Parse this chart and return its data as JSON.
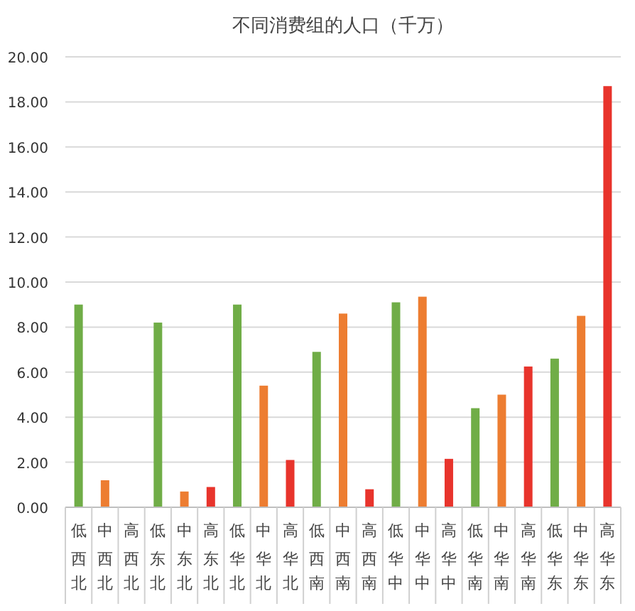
{
  "chart_data": {
    "type": "bar",
    "title": "不同消费组的人口（千万）",
    "categories": [
      "低西北",
      "中西北",
      "高西北",
      "低东北",
      "中东北",
      "高东北",
      "低华北",
      "中华北",
      "高华北",
      "低西南",
      "中西南",
      "高西南",
      "低华中",
      "中华中",
      "高华中",
      "低华南",
      "中华南",
      "高华南",
      "低华东",
      "中华东",
      "高华东"
    ],
    "values": [
      9.0,
      1.2,
      0,
      8.2,
      0.7,
      0.9,
      9.0,
      5.4,
      2.1,
      6.9,
      8.6,
      0.8,
      9.1,
      9.35,
      2.15,
      4.4,
      5.0,
      6.25,
      6.6,
      8.5,
      18.7
    ],
    "colors": [
      "#70ad47",
      "#ed7d31",
      "#e8342c",
      "#70ad47",
      "#ed7d31",
      "#e8342c",
      "#70ad47",
      "#ed7d31",
      "#e8342c",
      "#70ad47",
      "#ed7d31",
      "#e8342c",
      "#70ad47",
      "#ed7d31",
      "#e8342c",
      "#70ad47",
      "#ed7d31",
      "#e8342c",
      "#70ad47",
      "#ed7d31",
      "#e8342c"
    ],
    "ylim": [
      0,
      20
    ],
    "yticks": [
      {
        "value": 0,
        "label": "0.00"
      },
      {
        "value": 2,
        "label": "2.00"
      },
      {
        "value": 4,
        "label": "4.00"
      },
      {
        "value": 6,
        "label": "6.00"
      },
      {
        "value": 8,
        "label": "8.00"
      },
      {
        "value": 10,
        "label": "10.00"
      },
      {
        "value": 12,
        "label": "12.00"
      },
      {
        "value": 14,
        "label": "14.00"
      },
      {
        "value": 16,
        "label": "16.00"
      },
      {
        "value": 18,
        "label": "18.00"
      },
      {
        "value": 20,
        "label": "20.00"
      }
    ],
    "grid": "y"
  }
}
